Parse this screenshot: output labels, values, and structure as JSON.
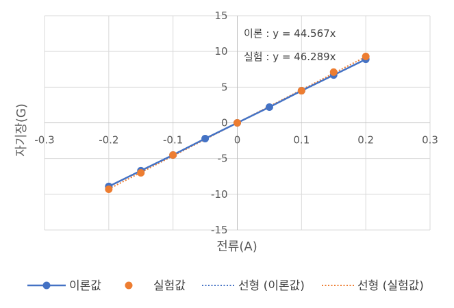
{
  "chart_data": {
    "type": "scatter",
    "title": "",
    "xlabel": "전류(A)",
    "ylabel": "자기장(G)",
    "xlim": [
      -0.3,
      0.3
    ],
    "ylim": [
      -15,
      15
    ],
    "x_ticks": [
      "-0.3",
      "-0.2",
      "-0.1",
      "0",
      "0.1",
      "0.2",
      "0.3"
    ],
    "y_ticks": [
      "15",
      "10",
      "5",
      "0",
      "-5",
      "-10",
      "-15"
    ],
    "grid": true,
    "legend_position": "bottom",
    "series": [
      {
        "name": "이론값",
        "style": "line-markers",
        "color": "#4472C4",
        "x": [
          -0.2,
          -0.15,
          -0.1,
          -0.05,
          0,
          0.05,
          0.1,
          0.15,
          0.2
        ],
        "y": [
          -8.9,
          -6.7,
          -4.5,
          -2.2,
          0,
          2.2,
          4.5,
          6.7,
          8.9
        ]
      },
      {
        "name": "실험값",
        "style": "markers",
        "color": "#ED7D31",
        "x": [
          -0.2,
          -0.15,
          -0.1,
          0,
          0.1,
          0.15,
          0.2
        ],
        "y": [
          -9.3,
          -7.0,
          -4.5,
          0,
          4.5,
          7.1,
          9.3
        ]
      }
    ],
    "trendlines": [
      {
        "name": "선형 (이론값)",
        "color": "#4472C4",
        "slope": 44.567,
        "x_range": [
          -0.2,
          0.2
        ]
      },
      {
        "name": "선형 (실험값)",
        "color": "#ED7D31",
        "slope": 46.289,
        "x_range": [
          -0.2,
          0.2
        ]
      }
    ],
    "annotations": [
      "이론 : y = 44.567x",
      "실험 : y = 46.289x"
    ]
  }
}
